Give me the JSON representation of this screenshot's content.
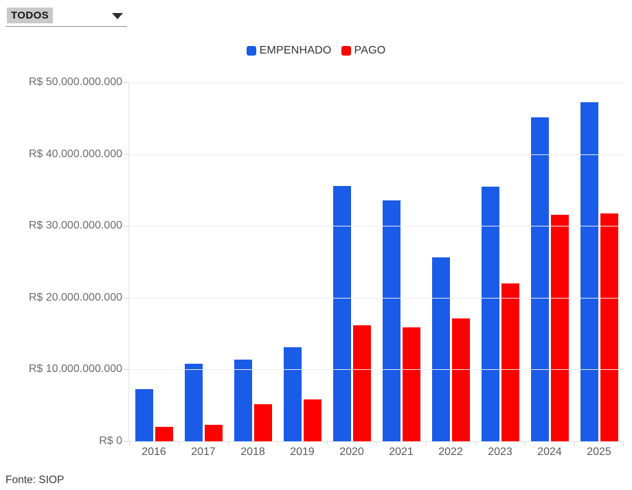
{
  "controls": {
    "filter_dropdown": {
      "value": "TODOS"
    }
  },
  "chart_data": {
    "type": "bar",
    "grouped": true,
    "title": "",
    "categories": [
      "2016",
      "2017",
      "2018",
      "2019",
      "2020",
      "2021",
      "2022",
      "2023",
      "2024",
      "2025"
    ],
    "series": [
      {
        "name": "EMPENHADO",
        "color": "#1a5ce8",
        "values": [
          7300000000,
          10800000000,
          11400000000,
          13100000000,
          35600000000,
          33600000000,
          25600000000,
          35500000000,
          45100000000,
          47200000000
        ]
      },
      {
        "name": "PAGO",
        "color": "#fe0000",
        "values": [
          2000000000,
          2300000000,
          5200000000,
          5800000000,
          16200000000,
          15900000000,
          17100000000,
          22000000000,
          31600000000,
          31700000000
        ]
      }
    ],
    "ylim": [
      0,
      50000000000
    ],
    "y_tick_labels": [
      "R$ 0",
      "R$ 10.000.000.000",
      "R$ 20.000.000.000",
      "R$ 30.000.000.000",
      "R$ 40.000.000.000",
      "R$ 50.000.000.000"
    ],
    "xlabel": "",
    "ylabel": "",
    "grid": true,
    "legend_position": "top",
    "currency": "R$"
  },
  "footer": {
    "source": "Fonte: SIOP"
  }
}
